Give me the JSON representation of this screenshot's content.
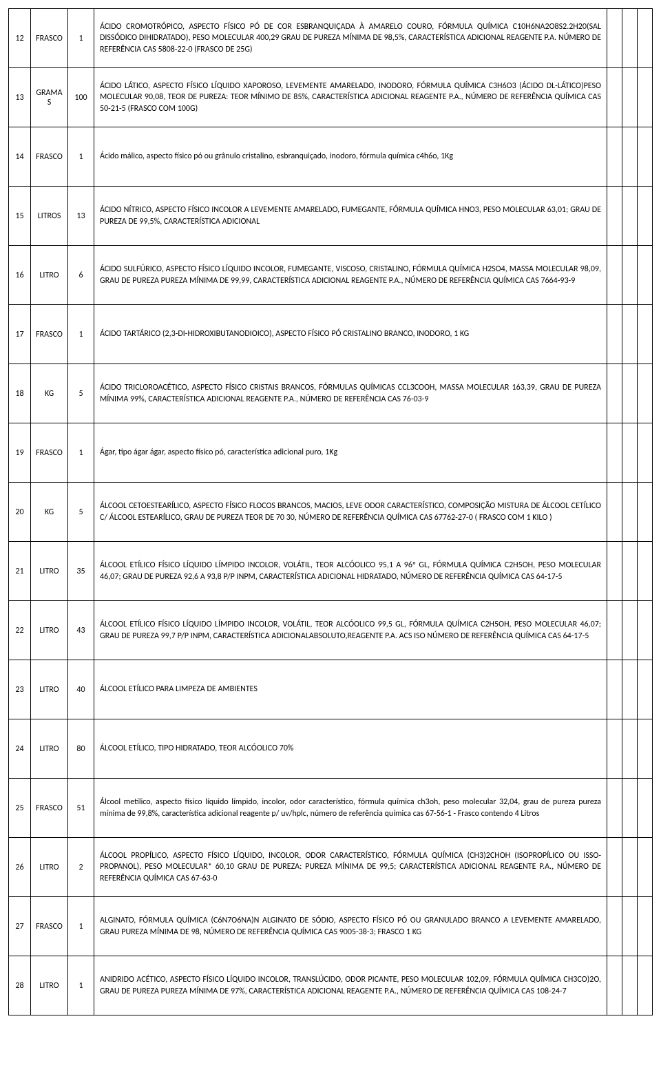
{
  "rows": [
    {
      "num": "12",
      "unit": "FRASCO",
      "qty": "1",
      "desc": "ÁCIDO CROMOTRÓPICO, ASPECTO FÍSICO PÓ DE COR ESBRANQUIÇADA À AMARELO COURO, FÓRMULA QUÍMICA C10H6NA2O8S2.2H20(SAL DISSÓDICO DIHIDRATADO), PESO MOLECULAR 400,29 GRAU DE PUREZA MÍNIMA DE 98,5%, CARACTERÍSTICA ADICIONAL  REAGENTE P.A. NÚMERO DE REFERÊNCIA  CAS 5808-22-0 (FRASCO DE 25G)"
    },
    {
      "num": "13",
      "unit": "GRAMAS",
      "qty": "100",
      "desc": "ÁCIDO LÁTICO, ASPECTO FÍSICO LÍQUIDO XAPOROSO, LEVEMENTE AMARELADO, INODORO, FÓRMULA QUÍMICA C3H6O3 (ÁCIDO DL-LÁTICO)PESO MOLECULAR 90,08, TEOR DE PUREZA: TEOR MÍNIMO DE 85%, CARACTERÍSTICA ADICIONAL REAGENTE P.A., NÚMERO DE REFERÊNCIA QUÍMICA CAS 50-21-5 (FRASCO COM 100G)"
    },
    {
      "num": "14",
      "unit": "FRASCO",
      "qty": "1",
      "desc": "Ácido málico, aspecto físico pó ou grânulo cristalino, esbranquiçado, inodoro, fórmula química c4h6o, 1Kg"
    },
    {
      "num": "15",
      "unit": "LITROS",
      "qty": "13",
      "desc": "ÁCIDO NÍTRICO, ASPECTO FÍSICO INCOLOR A LEVEMENTE AMARELADO, FUMEGANTE, FÓRMULA QUÍMICA HNO3, PESO MOLECULAR 63,01; GRAU DE PUREZA DE 99,5%, CARACTERÍSTICA ADICIONAL"
    },
    {
      "num": "16",
      "unit": "LITRO",
      "qty": "6",
      "desc": "ÁCIDO SULFÚRICO, ASPECTO FÍSICO LÍQUIDO INCOLOR, FUMEGANTE, VISCOSO, CRISTALINO, FÓRMULA QUÍMICA H2SO4, MASSA MOLECULAR 98,09, GRAU DE PUREZA PUREZA MÍNIMA DE 99,99, CARACTERÍSTICA ADICIONAL REAGENTE P.A., NÚMERO DE REFERÊNCIA QUÍMICA CAS 7664-93-9"
    },
    {
      "num": "17",
      "unit": "FRASCO",
      "qty": "1",
      "desc": "ÁCIDO TARTÁRICO (2,3-DI-HIDROXIBUTANODIOICO), ASPECTO FÍSICO PÓ CRISTALINO BRANCO, INODORO, 1 KG"
    },
    {
      "num": "18",
      "unit": "KG",
      "qty": "5",
      "desc": "ÁCIDO TRICLOROACÉTICO, ASPECTO FÍSICO CRISTAIS BRANCOS, FÓRMULAS QUÍMICAS CCL3COOH, MASSA MOLECULAR 163,39, GRAU DE PUREZA  MÍNIMA 99%, CARACTERÍSTICA ADICIONAL REAGENTE P.A., NÚMERO DE REFERÊNCIA CAS 76-03-9"
    },
    {
      "num": "19",
      "unit": "FRASCO",
      "qty": "1",
      "desc": "Ágar, tipo ágar ágar, aspecto físico pó, característica adicional puro, 1Kg"
    },
    {
      "num": "20",
      "unit": "KG",
      "qty": "5",
      "desc": "ÁLCOOL CETOESTEARÍLICO, ASPECTO FÍSICO FLOCOS BRANCOS, MACIOS, LEVE ODOR CARACTERÍSTICO, COMPOSIÇÃO MISTURA DE ÁLCOOL CETÍLICO C/ ÁLCOOL ESTEARÍLICO, GRAU DE PUREZA TEOR DE 70 30, NÚMERO DE REFERÊNCIA QUÍMICA CAS 67762-27-0 ( FRASCO COM 1 KILO )"
    },
    {
      "num": "21",
      "unit": "LITRO",
      "qty": "35",
      "desc": "ÁLCOOL ETÍLICO FÍSICO LÍQUIDO LÍMPIDO INCOLOR, VOLÁTIL, TEOR ALCÓOLICO 95,1 A 96º GL, FÓRMULA QUÍMICA C2H5OH, PESO MOLECULAR 46,07; GRAU DE PUREZA 92,6 A 93,8 P/P INPM, CARACTERÍSTICA ADICIONAL HIDRATADO, NÚMERO DE REFERÊNCIA QUÍMICA CAS 64-17-5"
    },
    {
      "num": "22",
      "unit": "LITRO",
      "qty": "43",
      "desc": "ÁLCOOL ETÍLICO FÍSICO LÍQUIDO LÍMPIDO INCOLOR, VOLÁTIL, TEOR ALCÓOLICO 99,5 GL, FÓRMULA QUÍMICA C2H5OH, PESO MOLECULAR 46,07; GRAU DE PUREZA 99,7 P/P INPM, CARACTERÍSTICA ADICIONALABSOLUTO,REAGENTE P.A. ACS ISO  NÚMERO DE REFERÊNCIA QUÍMICA CAS 64-17-5"
    },
    {
      "num": "23",
      "unit": "LITRO",
      "qty": "40",
      "desc": "ÁLCOOL ETÍLICO PARA LIMPEZA DE AMBIENTES"
    },
    {
      "num": "24",
      "unit": "LITRO",
      "qty": "80",
      "desc": "ÁLCOOL ETÍLICO, TIPO HIDRATADO, TEOR ALCÓOLICO 70%"
    },
    {
      "num": "25",
      "unit": "FRASCO",
      "qty": "51",
      "desc": "Álcool metílico, aspecto físico líquido límpido, incolor, odor característico, fórmula química ch3oh, peso molecular 32,04, grau de pureza pureza mínima de 99,8%, característica adicional reagente p/ uv/hplc, número de referência química cas 67-56-1 -  Frasco contendo 4 Litros"
    },
    {
      "num": "26",
      "unit": "LITRO",
      "qty": "2",
      "desc": "ÁLCOOL PROPÍLICO, ASPECTO FÍSICO LÍQUIDO, INCOLOR, ODOR CARACTERÍSTICO, FÓRMULA QUÍMICA (CH3)2CHOH (ISOPROPÍLICO OU ISSO-PROPANOL), PESO MOLECULAR* 60,10 GRAU DE PUREZA: PUREZA MÍNIMA DE 99,5; CARACTERÍSTICA ADICIONAL  REAGENTE P.A., NÚMERO  DE REFERÊNCIA QUÍMICA  CAS 67-63-0"
    },
    {
      "num": "27",
      "unit": "FRASCO",
      "qty": "1",
      "desc": "ALGINATO, FÓRMULA QUÍMICA (C6N7O6NA)N ALGINATO DE SÓDIO, ASPECTO FÍSICO PÓ OU GRANULADO BRANCO A LEVEMENTE AMARELADO, GRAU PUREZA MÍNIMA DE 98, NÚMERO DE REFERÊNCIA QUÍMICA CAS 9005-38-3; FRASCO 1 KG"
    },
    {
      "num": "28",
      "unit": "LITRO",
      "qty": "1",
      "desc": "ANIDRIDO ACÉTICO, ASPECTO FÍSICO LÍQUIDO INCOLOR, TRANSLÚCIDO, ODOR PICANTE, PESO MOLECULAR 102,09, FÓRMULA QUÍMICA CH3CO)2O, GRAU DE PUREZA PUREZA MÍNIMA DE 97%, CARACTERÍSTICA ADICIONAL REAGENTE P.A., NÚMERO DE REFERÊNCIA QUÍMICA CAS 108-24-7"
    }
  ]
}
